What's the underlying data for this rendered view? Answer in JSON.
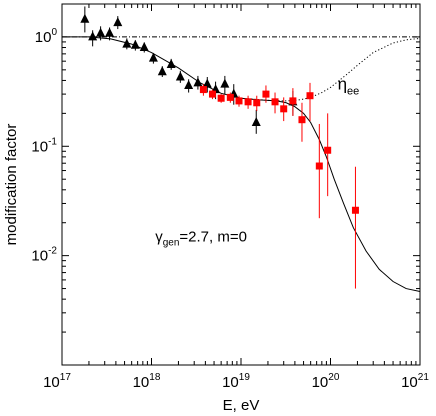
{
  "chart_data": {
    "type": "scatter",
    "xlabel": "E, eV",
    "ylabel": "modification factor",
    "x_log": true,
    "y_log": true,
    "xlim": [
      1e+17,
      1e+21
    ],
    "ylim": [
      0.001,
      2
    ],
    "x_ticks": [
      {
        "value": 1e+17,
        "base": "10",
        "exp": "17"
      },
      {
        "value": 1e+18,
        "base": "10",
        "exp": "18"
      },
      {
        "value": 1e+19,
        "base": "10",
        "exp": "19"
      },
      {
        "value": 1e+20,
        "base": "10",
        "exp": "20"
      },
      {
        "value": 1e+21,
        "base": "10",
        "exp": "21"
      }
    ],
    "y_ticks": [
      {
        "value": 1,
        "base": "10",
        "exp": "0"
      },
      {
        "value": 0.1,
        "base": "10",
        "exp": "-1"
      },
      {
        "value": 0.01,
        "base": "10",
        "exp": "-2"
      }
    ],
    "annotation": {
      "sym": "γ",
      "sub": "gen",
      "text": "=2.7, m=0",
      "at": [
        1.1e+18,
        0.0135
      ]
    },
    "eta_label": {
      "sym": "η",
      "sub": "ee",
      "at": [
        1.2e+20,
        0.33
      ]
    },
    "series": [
      {
        "marker": "triangle",
        "color": "#000000",
        "points": [
          {
            "x": 1.8e+17,
            "y": 1.45,
            "lo": 1.1,
            "hi": 1.9
          },
          {
            "x": 2.2e+17,
            "y": 1.0,
            "lo": 0.82,
            "hi": 1.15
          },
          {
            "x": 2.7e+17,
            "y": 1.08,
            "lo": 0.93,
            "hi": 1.25
          },
          {
            "x": 3.4e+17,
            "y": 1.08,
            "lo": 0.93,
            "hi": 1.22
          },
          {
            "x": 4.2e+17,
            "y": 1.35,
            "lo": 1.18,
            "hi": 1.55
          },
          {
            "x": 5.3e+17,
            "y": 0.86,
            "lo": 0.77,
            "hi": 0.97
          },
          {
            "x": 6.6e+17,
            "y": 0.84,
            "lo": 0.75,
            "hi": 0.93
          },
          {
            "x": 8.3e+17,
            "y": 0.8,
            "lo": 0.72,
            "hi": 0.89
          },
          {
            "x": 1.05e+18,
            "y": 0.64,
            "lo": 0.57,
            "hi": 0.71
          },
          {
            "x": 1.32e+18,
            "y": 0.48,
            "lo": 0.43,
            "hi": 0.54
          },
          {
            "x": 1.66e+18,
            "y": 0.56,
            "lo": 0.5,
            "hi": 0.63
          },
          {
            "x": 2.1e+18,
            "y": 0.43,
            "lo": 0.38,
            "hi": 0.49
          },
          {
            "x": 2.6e+18,
            "y": 0.36,
            "lo": 0.31,
            "hi": 0.41
          },
          {
            "x": 3.3e+18,
            "y": 0.38,
            "lo": 0.33,
            "hi": 0.44
          },
          {
            "x": 4.2e+18,
            "y": 0.37,
            "lo": 0.31,
            "hi": 0.43
          },
          {
            "x": 5.2e+18,
            "y": 0.33,
            "lo": 0.27,
            "hi": 0.39
          },
          {
            "x": 6.6e+18,
            "y": 0.37,
            "lo": 0.3,
            "hi": 0.44
          },
          {
            "x": 8.3e+18,
            "y": 0.3,
            "lo": 0.24,
            "hi": 0.37
          },
          {
            "x": 1.48e+19,
            "y": 0.165,
            "lo": 0.13,
            "hi": 0.215
          },
          {
            "x": 3.8e+19,
            "y": 0.255,
            "lo": 0.19,
            "hi": 0.32
          }
        ]
      },
      {
        "marker": "square",
        "color": "#ff0000",
        "points": [
          {
            "x": 3.8e+18,
            "y": 0.33,
            "lo": 0.29,
            "hi": 0.37
          },
          {
            "x": 4.8e+18,
            "y": 0.3,
            "lo": 0.27,
            "hi": 0.33
          },
          {
            "x": 6e+18,
            "y": 0.275,
            "lo": 0.25,
            "hi": 0.3
          },
          {
            "x": 7.6e+18,
            "y": 0.28,
            "lo": 0.25,
            "hi": 0.31
          },
          {
            "x": 9.5e+18,
            "y": 0.26,
            "lo": 0.23,
            "hi": 0.29
          },
          {
            "x": 1.2e+19,
            "y": 0.255,
            "lo": 0.22,
            "hi": 0.29
          },
          {
            "x": 1.5e+19,
            "y": 0.25,
            "lo": 0.21,
            "hi": 0.29
          },
          {
            "x": 1.9e+19,
            "y": 0.3,
            "lo": 0.25,
            "hi": 0.36
          },
          {
            "x": 2.4e+19,
            "y": 0.255,
            "lo": 0.2,
            "hi": 0.31
          },
          {
            "x": 3e+19,
            "y": 0.22,
            "lo": 0.17,
            "hi": 0.28
          },
          {
            "x": 3.8e+19,
            "y": 0.26,
            "lo": 0.19,
            "hi": 0.34
          },
          {
            "x": 4.8e+19,
            "y": 0.175,
            "lo": 0.11,
            "hi": 0.25
          },
          {
            "x": 5.9e+19,
            "y": 0.29,
            "lo": 0.17,
            "hi": 0.38
          },
          {
            "x": 7.5e+19,
            "y": 0.066,
            "lo": 0.022,
            "hi": 0.16
          },
          {
            "x": 9.3e+19,
            "y": 0.092,
            "lo": 0.035,
            "hi": 0.2
          },
          {
            "x": 1.9e+20,
            "y": 0.026,
            "lo": 0.005,
            "hi": 0.065
          }
        ]
      }
    ],
    "curves": [
      {
        "style": "solid",
        "points": [
          [
            1e+17,
            1.0
          ],
          [
            2e+17,
            1.0
          ],
          [
            3.5e+17,
            0.96
          ],
          [
            6e+17,
            0.86
          ],
          [
            1e+18,
            0.72
          ],
          [
            2e+18,
            0.52
          ],
          [
            3.5e+18,
            0.38
          ],
          [
            6e+18,
            0.305
          ],
          [
            1e+19,
            0.275
          ],
          [
            1.6e+19,
            0.266
          ],
          [
            2.5e+19,
            0.26
          ],
          [
            3.2e+19,
            0.25
          ],
          [
            4e+19,
            0.23
          ],
          [
            5e+19,
            0.2
          ],
          [
            6e+19,
            0.165
          ],
          [
            7.5e+19,
            0.115
          ],
          [
            9e+19,
            0.08
          ],
          [
            1.1e+20,
            0.05
          ],
          [
            1.4e+20,
            0.03
          ],
          [
            1.8e+20,
            0.018
          ],
          [
            2.5e+20,
            0.011
          ],
          [
            3.5e+20,
            0.0075
          ],
          [
            5e+20,
            0.0058
          ],
          [
            7e+20,
            0.005
          ],
          [
            1e+21,
            0.0047
          ]
        ]
      },
      {
        "style": "dotted",
        "points": [
          [
            1e+19,
            0.275
          ],
          [
            2e+19,
            0.263
          ],
          [
            3e+19,
            0.26
          ],
          [
            4e+19,
            0.262
          ],
          [
            5e+19,
            0.27
          ],
          [
            6e+19,
            0.28
          ],
          [
            8e+19,
            0.31
          ],
          [
            1e+20,
            0.345
          ],
          [
            1.5e+20,
            0.45
          ],
          [
            2e+20,
            0.55
          ],
          [
            3e+20,
            0.72
          ],
          [
            5e+20,
            0.88
          ],
          [
            7e+20,
            0.94
          ],
          [
            1e+21,
            0.97
          ]
        ]
      },
      {
        "style": "dashdot",
        "points": [
          [
            1e+17,
            1.0
          ],
          [
            1e+21,
            1.0
          ]
        ]
      }
    ]
  }
}
